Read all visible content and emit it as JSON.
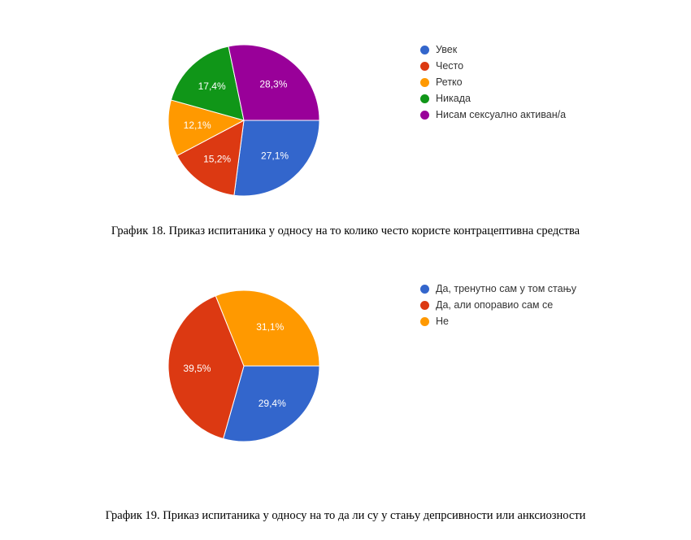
{
  "chart_data": [
    {
      "type": "pie",
      "categories": [
        "Увек",
        "Често",
        "Ретко",
        "Никада",
        "Нисам сексуално активан/а"
      ],
      "values": [
        27.1,
        15.2,
        12.1,
        17.4,
        28.3
      ],
      "value_labels": [
        "27,1%",
        "15,2%",
        "12,1%",
        "17,4%",
        "28,3%"
      ],
      "colors": [
        "#3366cc",
        "#dc3912",
        "#ff9900",
        "#109618",
        "#990099"
      ],
      "legend_position": "right",
      "caption": "График 18.  Приказ испитаника у односу на то колико често користе контрацептивна средства"
    },
    {
      "type": "pie",
      "categories": [
        "Да, тренутно сам у том стању",
        "Да, али опоравио сам се",
        "Не"
      ],
      "values": [
        29.4,
        39.5,
        31.1
      ],
      "value_labels": [
        "29,4%",
        "39,5%",
        "31,1%"
      ],
      "colors": [
        "#3366cc",
        "#dc3912",
        "#ff9900"
      ],
      "legend_position": "right",
      "caption": "График 19. Приказ испитаника у односу на то да ли су у стању депрсивности или анксиозности"
    }
  ]
}
